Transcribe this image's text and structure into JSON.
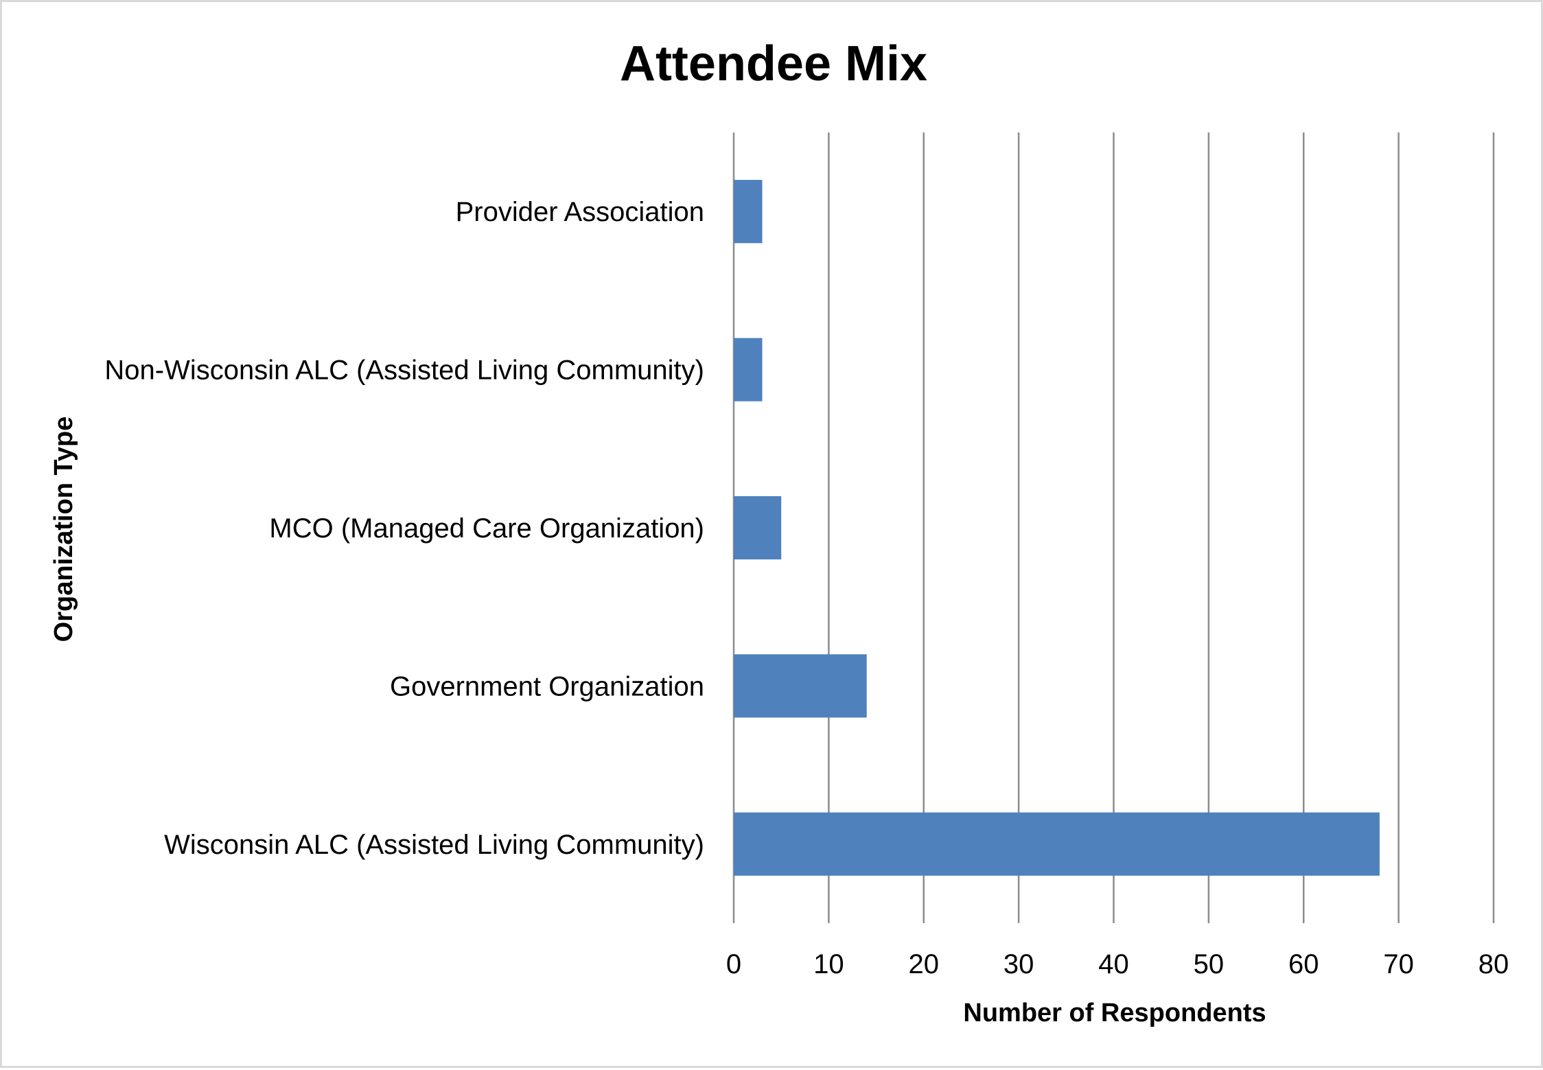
{
  "chart_data": {
    "type": "bar",
    "orientation": "horizontal",
    "title": "Attendee Mix",
    "xlabel": "Number of Respondents",
    "ylabel": "Organization Type",
    "categories": [
      "Provider Association",
      "Non-Wisconsin ALC (Assisted Living Community)",
      "MCO (Managed Care Organization)",
      "Government Organization",
      "Wisconsin ALC (Assisted Living Community)"
    ],
    "values": [
      3,
      3,
      5,
      14,
      68
    ],
    "xlim": [
      0,
      80
    ],
    "xticks": [
      0,
      10,
      20,
      30,
      40,
      50,
      60,
      70,
      80
    ],
    "grid": "vertical",
    "legend": "none",
    "colors": {
      "bar": "#4f81bd",
      "grid": "#8c8c8c",
      "border": "#d9d9d9"
    }
  }
}
